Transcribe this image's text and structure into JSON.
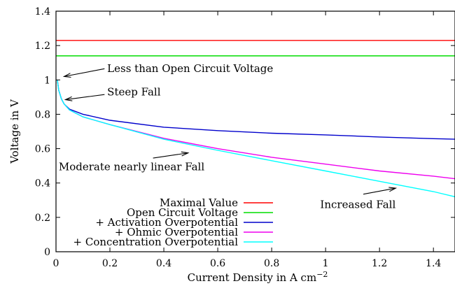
{
  "chart_data": {
    "type": "line",
    "xlabel": "Current Density in A cm",
    "xlabel_exp": "−2",
    "ylabel": "Voltage in V",
    "xlim": [
      0,
      1.48
    ],
    "ylim": [
      0,
      1.4
    ],
    "xticks": [
      0,
      0.2,
      0.4,
      0.6,
      0.8,
      1,
      1.2,
      1.4
    ],
    "xtick_labels": [
      "0",
      "0.2",
      "0.4",
      "0.6",
      "0.8",
      "1",
      "1.2",
      "1.4"
    ],
    "yticks": [
      0,
      0.2,
      0.4,
      0.6,
      0.8,
      1,
      1.2,
      1.4
    ],
    "ytick_labels": [
      "0",
      "0.2",
      "0.4",
      "0.6",
      "0.8",
      "1",
      "1.2",
      "1.4"
    ],
    "grid": false,
    "legend_position": "bottom-center",
    "series": [
      {
        "name": "Maximal Value",
        "color": "#ff0000",
        "kind": "constant",
        "value": 1.23
      },
      {
        "name": "Open Circuit Voltage",
        "color": "#00dd00",
        "kind": "constant",
        "value": 1.14
      },
      {
        "name": "+ Activation Overpotential",
        "color": "#0000cc",
        "kind": "curve",
        "x": [
          0.005,
          0.01,
          0.02,
          0.03,
          0.05,
          0.1,
          0.2,
          0.4,
          0.6,
          0.8,
          1.0,
          1.2,
          1.4,
          1.48
        ],
        "y": [
          1.0,
          0.94,
          0.89,
          0.86,
          0.83,
          0.8,
          0.765,
          0.725,
          0.705,
          0.69,
          0.68,
          0.668,
          0.658,
          0.655
        ]
      },
      {
        "name": "+ Ohmic Overpotential",
        "color": "#ee00ee",
        "kind": "curve",
        "x": [
          0.005,
          0.01,
          0.02,
          0.03,
          0.05,
          0.1,
          0.2,
          0.4,
          0.6,
          0.8,
          1.0,
          1.2,
          1.4,
          1.48
        ],
        "y": [
          1.0,
          0.94,
          0.89,
          0.86,
          0.825,
          0.785,
          0.74,
          0.66,
          0.6,
          0.55,
          0.51,
          0.47,
          0.44,
          0.425
        ]
      },
      {
        "name": "+ Concentration Overpotential",
        "color": "#00ffff",
        "kind": "curve",
        "x": [
          0.005,
          0.01,
          0.02,
          0.03,
          0.05,
          0.1,
          0.2,
          0.4,
          0.6,
          0.8,
          1.0,
          1.2,
          1.4,
          1.48
        ],
        "y": [
          1.0,
          0.94,
          0.89,
          0.86,
          0.825,
          0.785,
          0.74,
          0.655,
          0.59,
          0.53,
          0.47,
          0.41,
          0.35,
          0.32
        ]
      }
    ],
    "annotations": [
      {
        "text": "Less than Open Circuit Voltage",
        "tx": 0.19,
        "ty": 1.045,
        "ax": 0.03,
        "ay": 1.02,
        "fx": 0.18,
        "fy": 1.065
      },
      {
        "text": "Steep Fall",
        "tx": 0.19,
        "ty": 0.91,
        "ax": 0.035,
        "ay": 0.885,
        "fx": 0.18,
        "fy": 0.915
      },
      {
        "text": "Moderate nearly linear Fall",
        "tx": 0.01,
        "ty": 0.475,
        "ax": 0.49,
        "ay": 0.575,
        "fx": 0.36,
        "fy": 0.545
      },
      {
        "text": "Increased Fall",
        "tx": 0.98,
        "ty": 0.255,
        "ax": 1.26,
        "ay": 0.37,
        "fx": 1.14,
        "fy": 0.335
      }
    ]
  }
}
